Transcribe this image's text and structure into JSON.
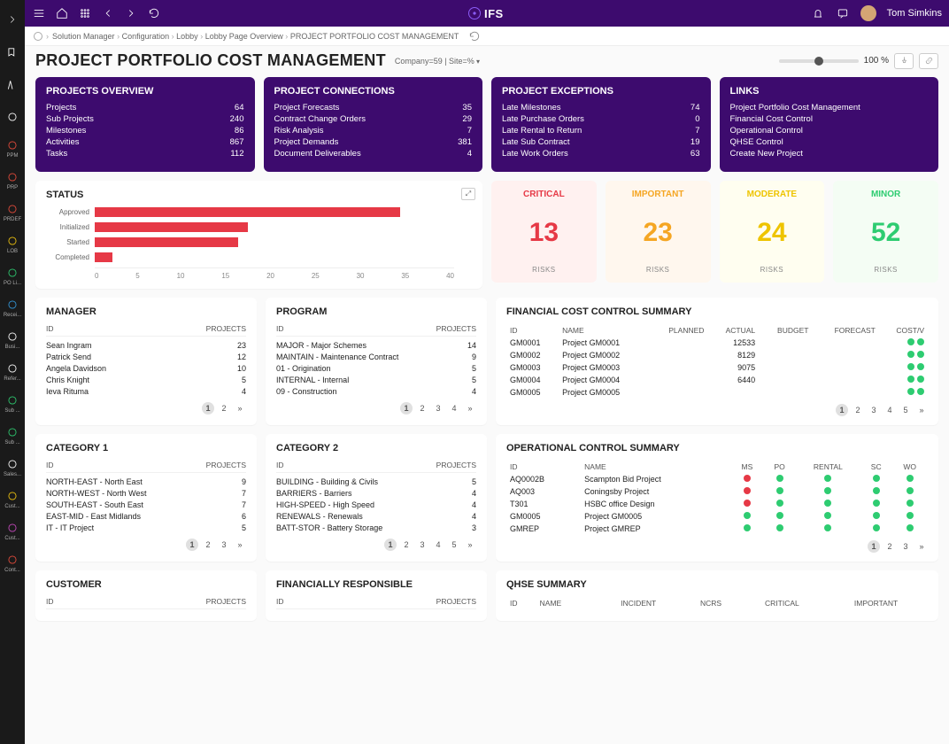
{
  "user": {
    "name": "Tom Simkins"
  },
  "brand": "IFS",
  "breadcrumb": [
    "Solution Manager",
    "Configuration",
    "Lobby",
    "Lobby Page Overview",
    "PROJECT PORTFOLIO COST MANAGEMENT"
  ],
  "page": {
    "title": "PROJECT PORTFOLIO COST MANAGEMENT",
    "subtitle": "Company=59 | Site=%",
    "zoom": "100 %"
  },
  "rail": [
    {
      "label": "",
      "cls": "white"
    },
    {
      "label": "",
      "cls": "white"
    },
    {
      "label": "",
      "cls": "white"
    },
    {
      "label": "PPM",
      "cls": "red"
    },
    {
      "label": "PRP",
      "cls": "red"
    },
    {
      "label": "PRDEF",
      "cls": "red"
    },
    {
      "label": "LOB",
      "cls": "yellow"
    },
    {
      "label": "PO Li...",
      "cls": "green"
    },
    {
      "label": "Recei...",
      "cls": "blue"
    },
    {
      "label": "Busi...",
      "cls": "white"
    },
    {
      "label": "Refer...",
      "cls": "white"
    },
    {
      "label": "Sub ...",
      "cls": "green"
    },
    {
      "label": "Sub ...",
      "cls": "green"
    },
    {
      "label": "Sales...",
      "cls": "white"
    },
    {
      "label": "Cust...",
      "cls": "yellow"
    },
    {
      "label": "Cust...",
      "cls": "purple"
    },
    {
      "label": "Cont...",
      "cls": "red"
    }
  ],
  "overview": {
    "title": "PROJECTS OVERVIEW",
    "rows": [
      [
        "Projects",
        "64"
      ],
      [
        "Sub Projects",
        "240"
      ],
      [
        "Milestones",
        "86"
      ],
      [
        "Activities",
        "867"
      ],
      [
        "Tasks",
        "112"
      ]
    ]
  },
  "connections": {
    "title": "PROJECT CONNECTIONS",
    "rows": [
      [
        "Project Forecasts",
        "35"
      ],
      [
        "Contract Change Orders",
        "29"
      ],
      [
        "Risk Analysis",
        "7"
      ],
      [
        "Project Demands",
        "381"
      ],
      [
        "Document Deliverables",
        "4"
      ]
    ]
  },
  "exceptions": {
    "title": "PROJECT EXCEPTIONS",
    "rows": [
      [
        "Late Milestones",
        "74"
      ],
      [
        "Late Purchase Orders",
        "0"
      ],
      [
        "Late Rental to Return",
        "7"
      ],
      [
        "Late Sub Contract",
        "19"
      ],
      [
        "Late Work Orders",
        "63"
      ]
    ]
  },
  "links": {
    "title": "LINKS",
    "items": [
      "Project Portfolio Cost Management",
      "Financial Cost Control",
      "Operational Control",
      "QHSE Control",
      "Create New Project"
    ]
  },
  "status": {
    "title": "STATUS",
    "max": 40,
    "ticks": [
      "0",
      "5",
      "10",
      "15",
      "20",
      "25",
      "30",
      "35",
      "40"
    ],
    "bars": [
      [
        "Approved",
        34
      ],
      [
        "Initialized",
        17
      ],
      [
        "Started",
        16
      ],
      [
        "Completed",
        2
      ]
    ],
    "bar_color": "#e63946"
  },
  "risks": [
    {
      "title": "CRITICAL",
      "value": "13",
      "bg": "#fff1f0",
      "color": "#e63946"
    },
    {
      "title": "IMPORTANT",
      "value": "23",
      "bg": "#fff7ee",
      "color": "#f5a623"
    },
    {
      "title": "MODERATE",
      "value": "24",
      "bg": "#fffef0",
      "color": "#eec400"
    },
    {
      "title": "MINOR",
      "value": "52",
      "bg": "#f4fdf4",
      "color": "#2ecc71"
    }
  ],
  "risks_foot": "RISKS",
  "manager": {
    "title": "MANAGER",
    "head": [
      "ID",
      "PROJECTS"
    ],
    "rows": [
      [
        "Sean Ingram",
        "23"
      ],
      [
        "Patrick Send",
        "12"
      ],
      [
        "Angela Davidson",
        "10"
      ],
      [
        "Chris Knight",
        "5"
      ],
      [
        "Ieva Rituma",
        "4"
      ]
    ],
    "pages": [
      "1",
      "2",
      "»"
    ]
  },
  "program": {
    "title": "PROGRAM",
    "head": [
      "ID",
      "PROJECTS"
    ],
    "rows": [
      [
        "MAJOR - Major Schemes",
        "14"
      ],
      [
        "MAINTAIN - Maintenance Contract",
        "9"
      ],
      [
        "01 - Origination",
        "5"
      ],
      [
        "INTERNAL - Internal",
        "5"
      ],
      [
        "09 - Construction",
        "4"
      ]
    ],
    "pages": [
      "1",
      "2",
      "3",
      "4",
      "»"
    ]
  },
  "fin": {
    "title": "FINANCIAL COST CONTROL SUMMARY",
    "head": [
      "ID",
      "NAME",
      "PLANNED",
      "ACTUAL",
      "BUDGET",
      "FORECAST",
      "COST/V"
    ],
    "rows": [
      [
        "GM0001",
        "Project GM0001",
        "",
        "12533",
        "",
        "",
        [
          "g",
          "g"
        ]
      ],
      [
        "GM0002",
        "Project GM0002",
        "",
        "8129",
        "",
        "",
        [
          "g",
          "g"
        ]
      ],
      [
        "GM0003",
        "Project GM0003",
        "",
        "9075",
        "",
        "",
        [
          "g",
          "g"
        ]
      ],
      [
        "GM0004",
        "Project GM0004",
        "",
        "6440",
        "",
        "",
        [
          "g",
          "g"
        ]
      ],
      [
        "GM0005",
        "Project GM0005",
        "",
        "",
        "",
        "",
        [
          "g",
          "g"
        ]
      ]
    ],
    "pages": [
      "1",
      "2",
      "3",
      "4",
      "5",
      "»"
    ]
  },
  "cat1": {
    "title": "CATEGORY 1",
    "head": [
      "ID",
      "PROJECTS"
    ],
    "rows": [
      [
        "NORTH-EAST - North East",
        "9"
      ],
      [
        "NORTH-WEST - North West",
        "7"
      ],
      [
        "SOUTH-EAST - South East",
        "7"
      ],
      [
        "EAST-MID - East Midlands",
        "6"
      ],
      [
        "IT - IT Project",
        "5"
      ]
    ],
    "pages": [
      "1",
      "2",
      "3",
      "»"
    ]
  },
  "cat2": {
    "title": "CATEGORY 2",
    "head": [
      "ID",
      "PROJECTS"
    ],
    "rows": [
      [
        "BUILDING - Building & Civils",
        "5"
      ],
      [
        "BARRIERS - Barriers",
        "4"
      ],
      [
        "HIGH-SPEED - High Speed",
        "4"
      ],
      [
        "RENEWALS - Renewals",
        "4"
      ],
      [
        "BATT-STOR - Battery Storage",
        "3"
      ]
    ],
    "pages": [
      "1",
      "2",
      "3",
      "4",
      "5",
      "»"
    ]
  },
  "ops": {
    "title": "OPERATIONAL CONTROL SUMMARY",
    "head": [
      "ID",
      "NAME",
      "MS",
      "PO",
      "RENTAL",
      "SC",
      "WO"
    ],
    "rows": [
      [
        "AQ0002B",
        "Scampton Bid Project",
        "r",
        "g",
        "g",
        "g",
        "g"
      ],
      [
        "AQ003",
        "Coningsby Project",
        "r",
        "g",
        "g",
        "g",
        "g"
      ],
      [
        "T301",
        "HSBC office Design",
        "r",
        "g",
        "g",
        "g",
        "g"
      ],
      [
        "GM0005",
        "Project GM0005",
        "g",
        "g",
        "g",
        "g",
        "g"
      ],
      [
        "GMREP",
        "Project GMREP",
        "g",
        "g",
        "g",
        "g",
        "g"
      ]
    ],
    "pages": [
      "1",
      "2",
      "3",
      "»"
    ]
  },
  "customer": {
    "title": "CUSTOMER",
    "head": [
      "ID",
      "PROJECTS"
    ]
  },
  "finresp": {
    "title": "FINANCIALLY RESPONSIBLE",
    "head": [
      "ID",
      "PROJECTS"
    ]
  },
  "qhse": {
    "title": "QHSE SUMMARY",
    "head": [
      "ID",
      "NAME",
      "INCIDENT",
      "NCRS",
      "CRITICAL",
      "IMPORTANT"
    ]
  }
}
